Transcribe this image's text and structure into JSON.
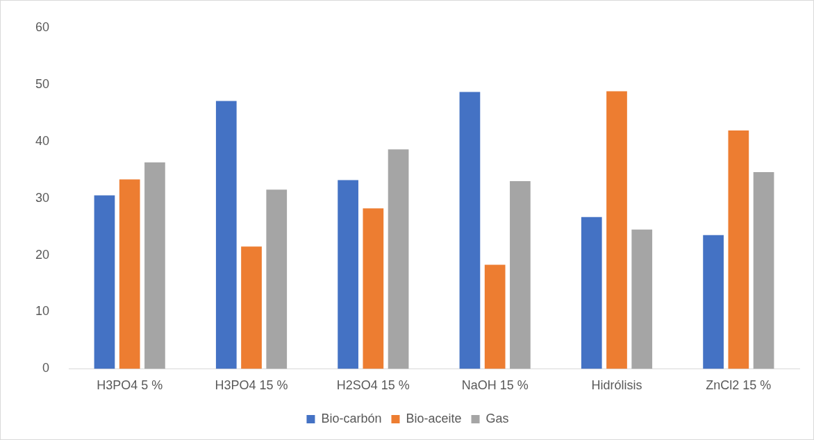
{
  "chart_data": {
    "type": "bar",
    "categories": [
      "H3PO4 5 %",
      "H3PO4 15 %",
      "H2SO4 15 %",
      "NaOH 15 %",
      "Hidrólisis",
      "ZnCl2 15 %"
    ],
    "series": [
      {
        "name": "Bio-carbón",
        "color": "#4472c4",
        "values": [
          30.5,
          47.1,
          33.2,
          48.7,
          26.7,
          23.5
        ]
      },
      {
        "name": "Bio-aceite",
        "color": "#ed7d31",
        "values": [
          33.3,
          21.5,
          28.2,
          18.3,
          48.8,
          41.9
        ]
      },
      {
        "name": "Gas",
        "color": "#a5a5a5",
        "values": [
          36.3,
          31.5,
          38.6,
          33.0,
          24.5,
          34.6
        ]
      }
    ],
    "ylim": [
      0,
      60
    ],
    "yticks": [
      0,
      10,
      20,
      30,
      40,
      50,
      60
    ],
    "grid": false,
    "legend": "bottom"
  }
}
